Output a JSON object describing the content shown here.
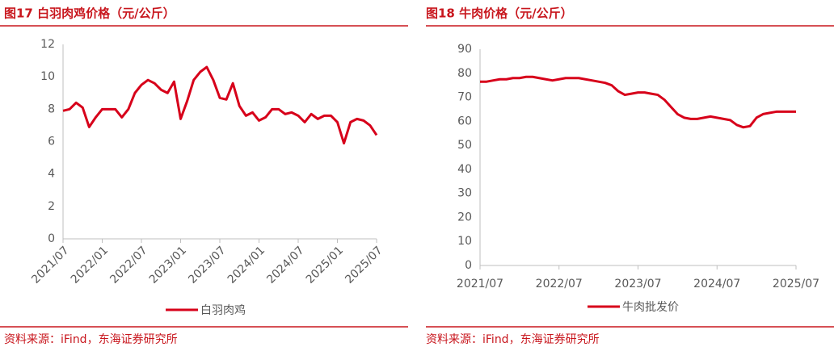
{
  "chart_data": [
    {
      "type": "line",
      "title": "图17  白羽肉鸡价格（元/公斤）",
      "source": "资料来源：iFind，东海证券研究所",
      "x": [
        "2021/07",
        "2021/08",
        "2021/09",
        "2021/10",
        "2021/11",
        "2021/12",
        "2022/01",
        "2022/02",
        "2022/03",
        "2022/04",
        "2022/05",
        "2022/06",
        "2022/07",
        "2022/08",
        "2022/09",
        "2022/10",
        "2022/11",
        "2022/12",
        "2023/01",
        "2023/02",
        "2023/03",
        "2023/04",
        "2023/05",
        "2023/06",
        "2023/07",
        "2023/08",
        "2023/09",
        "2023/10",
        "2023/11",
        "2023/12",
        "2024/01",
        "2024/02",
        "2024/03",
        "2024/04",
        "2024/05",
        "2024/06",
        "2024/07",
        "2024/08",
        "2024/09",
        "2024/10",
        "2024/11",
        "2024/12",
        "2025/01",
        "2025/02",
        "2025/03",
        "2025/04",
        "2025/05",
        "2025/06",
        "2025/07"
      ],
      "series": [
        {
          "name": "白羽肉鸡",
          "color": "#d7001a",
          "values": [
            7.9,
            8.0,
            8.4,
            8.1,
            6.9,
            7.5,
            8.0,
            8.0,
            8.0,
            7.5,
            8.0,
            9.0,
            9.5,
            9.8,
            9.6,
            9.2,
            9.0,
            9.7,
            7.4,
            8.5,
            9.8,
            10.3,
            10.6,
            9.8,
            8.7,
            8.6,
            9.6,
            8.2,
            7.6,
            7.8,
            7.3,
            7.5,
            8.0,
            8.0,
            7.7,
            7.8,
            7.6,
            7.2,
            7.7,
            7.4,
            7.6,
            7.6,
            7.2,
            5.9,
            7.2,
            7.4,
            7.3,
            7.0,
            6.4
          ]
        }
      ],
      "ylim": [
        0,
        12
      ],
      "yticks": [
        0,
        2,
        4,
        6,
        8,
        10,
        12
      ],
      "xticks": [
        "2021/07",
        "2022/01",
        "2022/07",
        "2023/01",
        "2023/07",
        "2024/01",
        "2024/07",
        "2025/01",
        "2025/07"
      ],
      "xtick_rotation": -45,
      "grid": false
    },
    {
      "type": "line",
      "title": "图18  牛肉价格（元/公斤）",
      "source": "资料来源：iFind，东海证券研究所",
      "x": [
        "2021/07",
        "2021/08",
        "2021/09",
        "2021/10",
        "2021/11",
        "2021/12",
        "2022/01",
        "2022/02",
        "2022/03",
        "2022/04",
        "2022/05",
        "2022/06",
        "2022/07",
        "2022/08",
        "2022/09",
        "2022/10",
        "2022/11",
        "2022/12",
        "2023/01",
        "2023/02",
        "2023/03",
        "2023/04",
        "2023/05",
        "2023/06",
        "2023/07",
        "2023/08",
        "2023/09",
        "2023/10",
        "2023/11",
        "2023/12",
        "2024/01",
        "2024/02",
        "2024/03",
        "2024/04",
        "2024/05",
        "2024/06",
        "2024/07",
        "2024/08",
        "2024/09",
        "2024/10",
        "2024/11",
        "2024/12",
        "2025/01",
        "2025/02",
        "2025/03",
        "2025/04",
        "2025/05",
        "2025/06",
        "2025/07"
      ],
      "series": [
        {
          "name": "牛肉批发价",
          "color": "#d7001a",
          "values": [
            76.5,
            76.5,
            77,
            77.5,
            77.5,
            78,
            78,
            78.5,
            78.5,
            78,
            77.5,
            77,
            77.5,
            78,
            78,
            78,
            77.5,
            77,
            76.5,
            76,
            75,
            72.5,
            71,
            71.5,
            72,
            72,
            71.5,
            71,
            69,
            66,
            63,
            61.5,
            61,
            61,
            61.5,
            62,
            61.5,
            61,
            60.5,
            58.5,
            57.5,
            58,
            61.5,
            63,
            63.5,
            64,
            64,
            64,
            64
          ]
        }
      ],
      "ylim": [
        0,
        90
      ],
      "yticks": [
        0,
        10,
        20,
        30,
        40,
        50,
        60,
        70,
        80,
        90
      ],
      "xticks": [
        "2021/07",
        "2022/07",
        "2023/07",
        "2024/07",
        "2025/07"
      ],
      "xtick_rotation": 0,
      "grid": false
    }
  ]
}
